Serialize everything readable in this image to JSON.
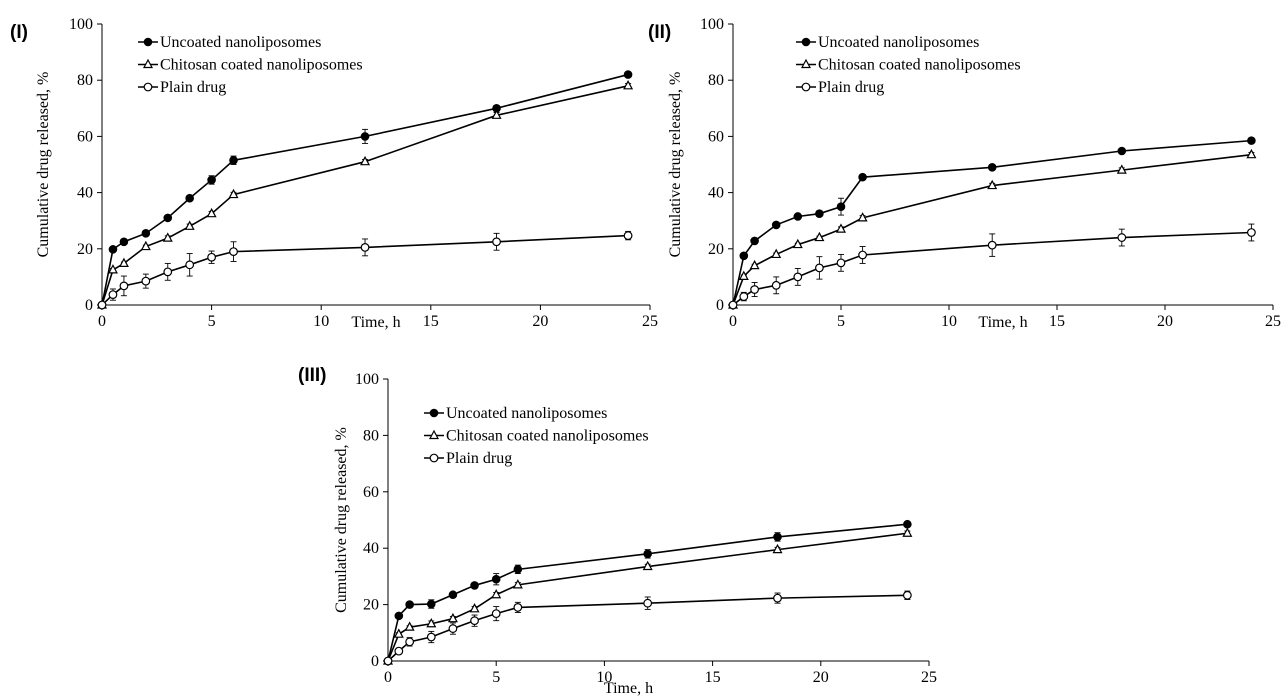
{
  "chart_data": [
    {
      "type": "line",
      "panel_label": "(I)",
      "xlabel": "Time, h",
      "ylabel": "Cumulative drug released, %",
      "xlim": [
        0,
        25
      ],
      "ylim": [
        0,
        100
      ],
      "xticks": [
        "0",
        "5",
        "10",
        "15",
        "20",
        "25"
      ],
      "yticks": [
        "0",
        "20",
        "40",
        "60",
        "80",
        "100"
      ],
      "grid": false,
      "legend_position": "top-left",
      "x": [
        0,
        0.5,
        1,
        2,
        3,
        4,
        5,
        6,
        12,
        18,
        24
      ],
      "series": [
        {
          "name": "Uncoated nanoliposomes",
          "marker": "filled-circle",
          "values": [
            0,
            19.8,
            22.5,
            25.5,
            31,
            38,
            44.5,
            51.5,
            60,
            70,
            82
          ],
          "errors": [
            0,
            0.5,
            0.5,
            0.5,
            0.8,
            0.8,
            1.5,
            1.5,
            2.5,
            1,
            0.8
          ]
        },
        {
          "name": "Chitosan coated nanoliposomes",
          "marker": "open-triangle",
          "values": [
            0,
            12.5,
            14.8,
            20.8,
            23.8,
            28,
            32.5,
            39.3,
            51,
            67.5,
            78
          ],
          "errors": [
            0,
            0.5,
            0.5,
            0.5,
            0.8,
            0.8,
            0.8,
            0.8,
            0.8,
            1,
            0.8
          ]
        },
        {
          "name": "Plain drug",
          "marker": "open-circle",
          "values": [
            0,
            3.7,
            6.8,
            8.5,
            11.8,
            14.3,
            17,
            19,
            20.5,
            22.5,
            24.7
          ],
          "errors": [
            0,
            2,
            3.5,
            2.5,
            3,
            4,
            2.2,
            3.5,
            3,
            3,
            1.5
          ]
        }
      ]
    },
    {
      "type": "line",
      "panel_label": "(II)",
      "xlabel": "Time, h",
      "ylabel": "Cumulative drug released, %",
      "xlim": [
        0,
        25
      ],
      "ylim": [
        0,
        100
      ],
      "xticks": [
        "0",
        "5",
        "10",
        "15",
        "20",
        "25"
      ],
      "yticks": [
        "0",
        "20",
        "40",
        "60",
        "80",
        "100"
      ],
      "grid": false,
      "legend_position": "top-center",
      "x": [
        0,
        0.5,
        1,
        2,
        3,
        4,
        5,
        6,
        12,
        18,
        24
      ],
      "series": [
        {
          "name": "Uncoated nanoliposomes",
          "marker": "filled-circle",
          "values": [
            0,
            17.5,
            22.8,
            28.5,
            31.5,
            32.5,
            35,
            45.5,
            49,
            54.8,
            58.5
          ],
          "errors": [
            0,
            0.5,
            0.5,
            0.8,
            0.8,
            1,
            3,
            0.8,
            0.8,
            0.8,
            0.8
          ]
        },
        {
          "name": "Chitosan coated nanoliposomes",
          "marker": "open-triangle",
          "values": [
            0,
            10.2,
            14,
            18,
            21.5,
            24,
            27,
            31,
            42.5,
            48,
            53.5
          ],
          "errors": [
            0,
            0.5,
            0.5,
            0.5,
            0.5,
            0.5,
            0.8,
            0.8,
            0.8,
            0.8,
            0.8
          ]
        },
        {
          "name": "Plain drug",
          "marker": "open-circle",
          "values": [
            0,
            3,
            5.5,
            7,
            10,
            13.2,
            15,
            17.8,
            21.3,
            24,
            25.8
          ],
          "errors": [
            0,
            1.5,
            2.5,
            3,
            3,
            4,
            3,
            3,
            4,
            3,
            3
          ]
        }
      ]
    },
    {
      "type": "line",
      "panel_label": "(III)",
      "xlabel": "Time, h",
      "ylabel": "Cumulative drug released, %",
      "xlim": [
        0,
        25
      ],
      "ylim": [
        0,
        100
      ],
      "xticks": [
        "0",
        "5",
        "10",
        "15",
        "20",
        "25"
      ],
      "yticks": [
        "0",
        "20",
        "40",
        "60",
        "80",
        "100"
      ],
      "grid": false,
      "legend_position": "top-left",
      "x": [
        0,
        0.5,
        1,
        2,
        3,
        4,
        5,
        6,
        12,
        18,
        24
      ],
      "series": [
        {
          "name": "Uncoated nanoliposomes",
          "marker": "filled-circle",
          "values": [
            0,
            16,
            20,
            20.2,
            23.5,
            26.8,
            29,
            32.5,
            38,
            44,
            48.5
          ],
          "errors": [
            0,
            0.5,
            0.5,
            1.5,
            0.8,
            1,
            2,
            1.5,
            1.5,
            1.5,
            0.8
          ]
        },
        {
          "name": "Chitosan coated nanoliposomes",
          "marker": "open-triangle",
          "values": [
            0,
            9.5,
            12,
            13.2,
            15,
            18.5,
            23.5,
            27,
            33.5,
            39.5,
            45.3
          ],
          "errors": [
            0,
            0.5,
            0.5,
            1,
            0.8,
            0.8,
            0.8,
            0.8,
            0.8,
            0.8,
            0.8
          ]
        },
        {
          "name": "Plain drug",
          "marker": "open-circle",
          "values": [
            0,
            3.5,
            6.8,
            8.5,
            11.5,
            14.3,
            16.8,
            19,
            20.5,
            22.3,
            23.3
          ],
          "errors": [
            0,
            1,
            1.5,
            2,
            2,
            2,
            2.5,
            1.8,
            2.2,
            1.8,
            1.5
          ]
        }
      ]
    }
  ]
}
